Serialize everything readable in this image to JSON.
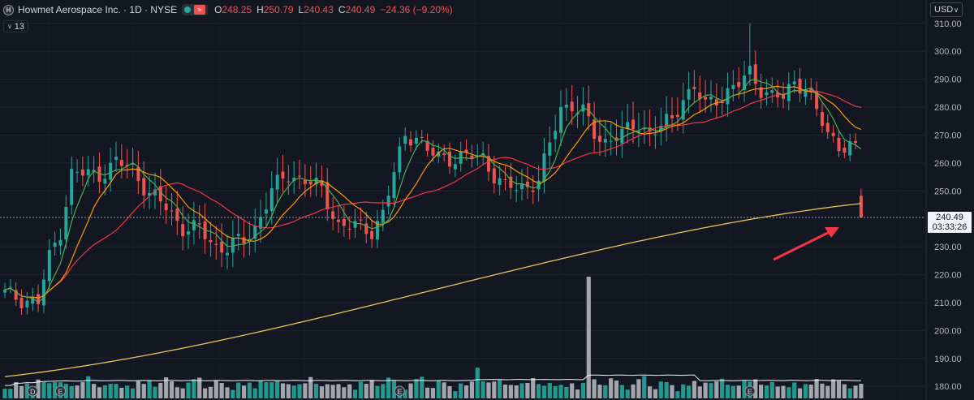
{
  "header": {
    "title": "Howmet Aerospace Inc. · 1D · NYSE",
    "logo_letter": "H",
    "o_label": "O",
    "o_value": "248.25",
    "h_label": "H",
    "h_value": "250.79",
    "l_label": "L",
    "l_value": "240.43",
    "c_label": "C",
    "c_value": "240.49",
    "change": "−24.36 (−9.20%)",
    "change_color": "#ef5350"
  },
  "indicator_badge": {
    "count": "13",
    "icon": "chevron-down-icon"
  },
  "currency": {
    "label": "USD",
    "icon": "chevron-down-icon"
  },
  "price_tag": {
    "price": "240.49",
    "countdown": "03:33:26"
  },
  "colors": {
    "background": "#131722",
    "up": "#26a69a",
    "down": "#ef5350",
    "ma_short": "#4caf50",
    "ma_mid": "#ff9800",
    "ma_long": "#f23645",
    "ma_200": "#e6c35c",
    "volume_up": "#26a69a",
    "volume_down": "#b2b5be",
    "volume_ma": "#f0f3fa",
    "arrow": "#f23645"
  },
  "earnings_markers": [
    {
      "label": "D",
      "bar_index": 5
    },
    {
      "label": "E",
      "bar_index": 10
    },
    {
      "label": "E",
      "bar_index": 71
    },
    {
      "label": "E",
      "bar_index": 134
    }
  ],
  "chart_data": {
    "type": "candlestick",
    "title": "Howmet Aerospace Inc. · 1D · NYSE",
    "y_ticks": [
      310,
      300,
      290,
      280,
      270,
      260,
      250,
      230,
      220,
      210,
      200,
      190,
      180
    ],
    "ylim": [
      176,
      314
    ],
    "last_price": 240.49,
    "grid": true,
    "series": [
      {
        "name": "Price",
        "type": "candlestick"
      },
      {
        "name": "MA short",
        "type": "line"
      },
      {
        "name": "MA mid",
        "type": "line"
      },
      {
        "name": "MA long",
        "type": "line"
      },
      {
        "name": "MA 200",
        "type": "line"
      },
      {
        "name": "Volume",
        "type": "bar"
      }
    ],
    "ma200_endpoints": [
      183.5,
      245.5
    ],
    "close_path_anchors": [
      [
        0,
        213
      ],
      [
        4,
        211
      ],
      [
        6,
        210
      ],
      [
        8,
        226
      ],
      [
        10,
        236
      ],
      [
        12,
        256
      ],
      [
        14,
        256
      ],
      [
        17,
        256
      ],
      [
        20,
        260
      ],
      [
        23,
        258
      ],
      [
        26,
        249
      ],
      [
        29,
        244
      ],
      [
        32,
        237
      ],
      [
        35,
        236
      ],
      [
        38,
        230
      ],
      [
        40,
        230
      ],
      [
        43,
        232
      ],
      [
        45,
        237
      ],
      [
        48,
        250
      ],
      [
        51,
        256
      ],
      [
        54,
        254
      ],
      [
        57,
        250
      ],
      [
        60,
        238
      ],
      [
        63,
        237
      ],
      [
        66,
        236
      ],
      [
        68,
        242
      ],
      [
        70,
        256
      ],
      [
        72,
        270
      ],
      [
        74,
        270
      ],
      [
        76,
        264
      ],
      [
        78,
        262
      ],
      [
        80,
        262
      ],
      [
        82,
        262
      ],
      [
        84,
        262
      ],
      [
        86,
        262
      ],
      [
        88,
        256
      ],
      [
        90,
        251
      ],
      [
        92,
        251
      ],
      [
        94,
        252
      ],
      [
        96,
        254
      ],
      [
        98,
        266
      ],
      [
        100,
        280
      ],
      [
        102,
        281
      ],
      [
        104,
        278
      ],
      [
        106,
        270
      ],
      [
        108,
        268
      ],
      [
        110,
        270
      ],
      [
        112,
        271
      ],
      [
        114,
        274
      ],
      [
        116,
        271
      ],
      [
        118,
        273
      ],
      [
        120,
        275
      ],
      [
        122,
        284
      ],
      [
        124,
        287
      ],
      [
        126,
        280
      ],
      [
        128,
        283
      ],
      [
        130,
        286
      ],
      [
        132,
        288
      ],
      [
        134,
        292
      ],
      [
        136,
        287
      ],
      [
        138,
        284
      ],
      [
        140,
        283
      ],
      [
        142,
        289
      ],
      [
        144,
        288
      ],
      [
        146,
        278
      ],
      [
        148,
        270
      ],
      [
        150,
        267
      ],
      [
        152,
        266
      ],
      [
        153,
        264.5
      ],
      [
        154,
        240.5
      ]
    ],
    "volume_pattern": [
      12,
      8,
      14,
      10,
      16,
      12,
      18,
      14,
      15,
      20,
      16,
      12,
      10,
      14,
      18,
      22,
      12,
      10,
      16,
      14
    ],
    "volume_spikes": [
      {
        "bar_index": 85,
        "value": 38
      },
      {
        "bar_index": 105,
        "value": 150
      },
      {
        "bar_index": 133,
        "value": 22
      }
    ]
  }
}
